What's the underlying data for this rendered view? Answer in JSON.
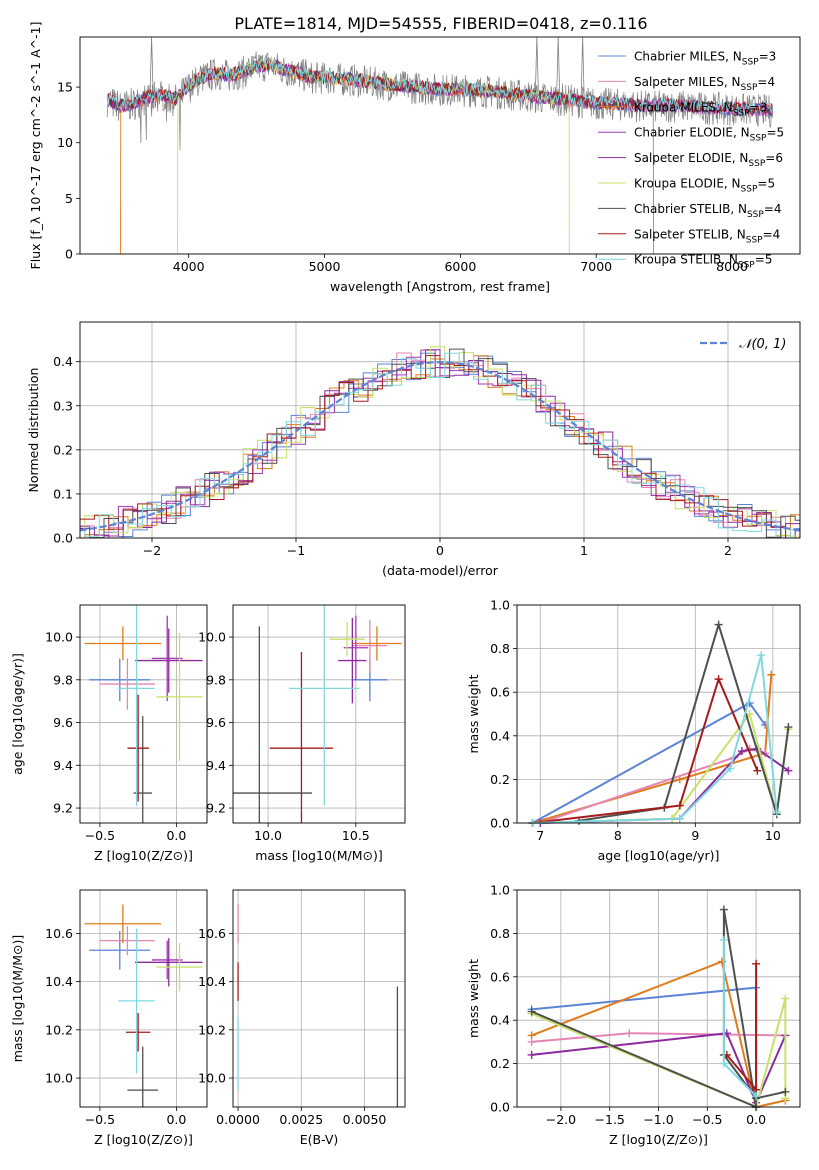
{
  "title": "PLATE=1814, MJD=54555, FIBERID=0418, z=0.116",
  "colors": {
    "chabrier_miles": "#5b84d6",
    "salpeter_miles": "#e485b3",
    "kroupa_miles": "#e07b1a",
    "chabrier_elodie": "#a437b5",
    "salpeter_elodie": "#8e2a9f",
    "kroupa_elodie": "#c6e26a",
    "chabrier_stelib": "#4f4f4f",
    "salpeter_stelib": "#a61b1b",
    "kroupa_stelib": "#7fd8e0",
    "data": "#808080",
    "gauss": "#5b84d6"
  },
  "chart_data": [
    {
      "id": "spectrum",
      "type": "line",
      "title": "PLATE=1814, MJD=54555, FIBERID=0418, z=0.116",
      "xlabel": "wavelength [Angstrom, rest frame]",
      "ylabel": "Flux [f_λ 10^-17 erg cm^-2 s^-1 A^-1]",
      "xlim": [
        3200,
        8500
      ],
      "ylim": [
        0,
        19.5
      ],
      "xticks": [
        "4000",
        "5000",
        "6000",
        "7000",
        "8000"
      ],
      "yticks": [
        "0",
        "5",
        "10",
        "15"
      ],
      "legend_position": "top-right",
      "legend": [
        {
          "label": "Chabrier MILES, N",
          "sub": "SSP",
          "eq": "=3",
          "color_key": "chabrier_miles"
        },
        {
          "label": "Salpeter MILES, N",
          "sub": "SSP",
          "eq": "=4",
          "color_key": "salpeter_miles"
        },
        {
          "label": "Kroupa MILES, N",
          "sub": "SSP",
          "eq": "=3",
          "color_key": "kroupa_miles"
        },
        {
          "label": "Chabrier ELODIE, N",
          "sub": "SSP",
          "eq": "=5",
          "color_key": "chabrier_elodie"
        },
        {
          "label": "Salpeter ELODIE, N",
          "sub": "SSP",
          "eq": "=6",
          "color_key": "salpeter_elodie"
        },
        {
          "label": "Kroupa ELODIE, N",
          "sub": "SSP",
          "eq": "=5",
          "color_key": "kroupa_elodie"
        },
        {
          "label": "Chabrier STELIB, N",
          "sub": "SSP",
          "eq": "=4",
          "color_key": "chabrier_stelib"
        },
        {
          "label": "Salpeter STELIB, N",
          "sub": "SSP",
          "eq": "=4",
          "color_key": "salpeter_stelib"
        },
        {
          "label": "Kroupa STELIB, N",
          "sub": "SSP",
          "eq": "=5",
          "color_key": "kroupa_stelib"
        }
      ],
      "continuum": {
        "x": [
          3400,
          3500,
          3600,
          3700,
          3800,
          3900,
          4000,
          4100,
          4200,
          4300,
          4400,
          4500,
          4600,
          4700,
          4800,
          4900,
          5000,
          5200,
          5400,
          5600,
          5800,
          6000,
          6200,
          6400,
          6600,
          6800,
          7000,
          7200,
          7400,
          7600,
          7800,
          8000,
          8200,
          8300
        ],
        "y": [
          13.8,
          13.2,
          13.5,
          14.0,
          14.3,
          13.8,
          15.0,
          15.8,
          16.2,
          16.0,
          16.3,
          16.8,
          17.0,
          16.5,
          16.2,
          15.8,
          15.8,
          15.6,
          15.3,
          15.0,
          14.8,
          14.7,
          14.6,
          14.3,
          14.0,
          13.8,
          13.5,
          13.4,
          13.2,
          13.3,
          13.1,
          13.0,
          12.9,
          12.8
        ]
      },
      "model_dropouts": [
        {
          "color_key": "kroupa_miles",
          "x": [
            3500,
            7420
          ],
          "note": ""
        },
        {
          "color_key": "kroupa_elodie",
          "x": [
            3920,
            6800
          ],
          "note": ""
        }
      ],
      "emission_lines": [
        {
          "x": 3727,
          "y": 19.5
        },
        {
          "x": 4861,
          "y": 17.5
        },
        {
          "x": 6563,
          "y": 19.5
        },
        {
          "x": 6720,
          "y": 19.5
        },
        {
          "x": 6900,
          "y": 19.5
        }
      ]
    },
    {
      "id": "residuals",
      "type": "line",
      "xlabel": "(data-model)/error",
      "ylabel": "Normed distribution",
      "xlim": [
        -2.5,
        2.5
      ],
      "ylim": [
        0,
        0.49
      ],
      "xticks": [
        -2,
        -1,
        0,
        1,
        2
      ],
      "xticklabels": [
        "−2",
        "−1",
        "0",
        "1",
        "2"
      ],
      "yticks": [
        0.0,
        0.1,
        0.2,
        0.3,
        0.4
      ],
      "yticklabels": [
        "0.0",
        "0.1",
        "0.2",
        "0.3",
        "0.4"
      ],
      "legend": "𝒩(0, 1)",
      "legend_position": "top-right",
      "grid": true
    },
    {
      "id": "age_vs_Z",
      "type": "scatter",
      "xlabel": "Z [log10(Z/Z⊙)]",
      "ylabel": "age  [log10(age/yr)]",
      "xlim": [
        -0.63,
        0.2
      ],
      "ylim": [
        9.13,
        10.15
      ],
      "xticks": [
        -0.5,
        0.0
      ],
      "xticklabels": [
        "−0.5",
        "0.0"
      ],
      "yticks": [
        9.2,
        9.4,
        9.6,
        9.8,
        10.0
      ],
      "yticklabels": [
        "9.2",
        "9.4",
        "9.6",
        "9.8",
        "10.0"
      ],
      "grid": true,
      "points": [
        {
          "color_key": "chabrier_miles",
          "x": -0.37,
          "xerr": 0.2,
          "y": 9.8,
          "yerr": 0.1
        },
        {
          "color_key": "salpeter_miles",
          "x": -0.32,
          "xerr": 0.18,
          "y": 9.78,
          "yerr": 0.12
        },
        {
          "color_key": "kroupa_miles",
          "x": -0.35,
          "xerr": 0.25,
          "y": 9.97,
          "yerr": 0.08
        },
        {
          "color_key": "chabrier_elodie",
          "x": -0.06,
          "xerr": 0.1,
          "y": 9.9,
          "yerr": 0.2
        },
        {
          "color_key": "salpeter_elodie",
          "x": -0.05,
          "xerr": 0.22,
          "y": 9.89,
          "yerr": 0.15
        },
        {
          "color_key": "kroupa_elodie",
          "x": 0.02,
          "xerr": 0.15,
          "y": 9.72,
          "yerr": 0.3
        },
        {
          "color_key": "chabrier_stelib",
          "x": -0.22,
          "xerr": 0.06,
          "y": 9.27,
          "yerr": 0.36
        },
        {
          "color_key": "salpeter_stelib",
          "x": -0.25,
          "xerr": 0.07,
          "y": 9.48,
          "yerr": 0.25
        },
        {
          "color_key": "kroupa_stelib",
          "x": -0.26,
          "xerr": 0.12,
          "y": 9.76,
          "yerr": 0.55
        }
      ]
    },
    {
      "id": "age_vs_mass",
      "type": "scatter",
      "xlabel": "mass [log10(M/M⊙)]",
      "ylabel": "",
      "xlim": [
        9.8,
        10.78
      ],
      "ylim": [
        9.13,
        10.15
      ],
      "xticks": [
        10.0,
        10.5
      ],
      "xticklabels": [
        "10.0",
        "10.5"
      ],
      "yticks": [
        9.2,
        9.4,
        9.6,
        9.8,
        10.0
      ],
      "yticklabels": [
        "9.2",
        "9.4",
        "9.6",
        "9.8",
        "10.0"
      ],
      "grid": true,
      "points": [
        {
          "color_key": "chabrier_miles",
          "x": 10.58,
          "xerr": 0.1,
          "y": 9.8,
          "yerr": 0.1
        },
        {
          "color_key": "salpeter_miles",
          "x": 10.58,
          "xerr": 0.1,
          "y": 9.96,
          "yerr": 0.12
        },
        {
          "color_key": "kroupa_miles",
          "x": 10.62,
          "xerr": 0.14,
          "y": 9.97,
          "yerr": 0.08
        },
        {
          "color_key": "chabrier_elodie",
          "x": 10.5,
          "xerr": 0.07,
          "y": 9.95,
          "yerr": 0.15
        },
        {
          "color_key": "salpeter_elodie",
          "x": 10.48,
          "xerr": 0.08,
          "y": 9.89,
          "yerr": 0.2
        },
        {
          "color_key": "kroupa_elodie",
          "x": 10.45,
          "xerr": 0.1,
          "y": 9.99,
          "yerr": 0.08
        },
        {
          "color_key": "chabrier_stelib",
          "x": 9.95,
          "xerr": 0.3,
          "y": 9.27,
          "yerr": 0.78
        },
        {
          "color_key": "salpeter_stelib",
          "x": 10.19,
          "xerr": 0.18,
          "y": 9.48,
          "yerr": 0.45
        },
        {
          "color_key": "kroupa_stelib",
          "x": 10.32,
          "xerr": 0.2,
          "y": 9.76,
          "yerr": 0.55
        }
      ]
    },
    {
      "id": "mass_weight_vs_age",
      "type": "line",
      "xlabel": "age  [log10(age/yr)]",
      "ylabel": "mass weight",
      "xlim": [
        6.7,
        10.35
      ],
      "ylim": [
        0.0,
        1.0
      ],
      "xticks": [
        7,
        8,
        9,
        10
      ],
      "xticklabels": [
        "7",
        "8",
        "9",
        "10"
      ],
      "yticks": [
        0.0,
        0.2,
        0.4,
        0.6,
        0.8,
        1.0
      ],
      "yticklabels": [
        "0.0",
        "0.2",
        "0.4",
        "0.6",
        "0.8",
        "1.0"
      ],
      "grid": true,
      "series": [
        {
          "color_key": "chabrier_miles",
          "x": [
            6.9,
            9.7,
            9.9
          ],
          "y": [
            0.0,
            0.55,
            0.45
          ]
        },
        {
          "color_key": "kroupa_miles",
          "x": [
            6.9,
            8.8,
            9.9,
            9.98
          ],
          "y": [
            0.0,
            0.2,
            0.32,
            0.68
          ]
        },
        {
          "color_key": "salpeter_miles",
          "x": [
            7.0,
            9.5,
            9.7,
            9.9
          ],
          "y": [
            0.0,
            0.3,
            0.34,
            0.32
          ]
        },
        {
          "color_key": "salpeter_elodie",
          "x": [
            7.0,
            8.8,
            9.6,
            9.8,
            10.2
          ],
          "y": [
            0.0,
            0.02,
            0.33,
            0.34,
            0.24
          ]
        },
        {
          "color_key": "kroupa_elodie",
          "x": [
            6.9,
            8.7,
            9.7,
            10.05,
            10.2
          ],
          "y": [
            0.0,
            0.02,
            0.5,
            0.04,
            0.43
          ]
        },
        {
          "color_key": "chabrier_stelib",
          "x": [
            7.5,
            8.6,
            9.3,
            10.05,
            10.2
          ],
          "y": [
            0.01,
            0.07,
            0.91,
            0.04,
            0.44
          ]
        },
        {
          "color_key": "salpeter_stelib",
          "x": [
            6.9,
            8.8,
            9.3,
            9.8
          ],
          "y": [
            0.0,
            0.08,
            0.66,
            0.24
          ]
        },
        {
          "color_key": "kroupa_stelib",
          "x": [
            6.9,
            8.8,
            9.45,
            9.85,
            10.05
          ],
          "y": [
            0.0,
            0.02,
            0.25,
            0.77,
            0.05
          ]
        }
      ]
    },
    {
      "id": "mass_vs_Z",
      "type": "scatter",
      "xlabel": "Z [log10(Z/Z⊙)]",
      "ylabel": "mass [log10(M/M⊙)]",
      "xlim": [
        -0.63,
        0.2
      ],
      "ylim": [
        9.88,
        10.78
      ],
      "xticks": [
        -0.5,
        0.0
      ],
      "xticklabels": [
        "−0.5",
        "0.0"
      ],
      "yticks": [
        10.0,
        10.2,
        10.4,
        10.6
      ],
      "yticklabels": [
        "10.0",
        "10.2",
        "10.4",
        "10.6"
      ],
      "grid": true,
      "points": [
        {
          "color_key": "chabrier_miles",
          "x": -0.37,
          "xerr": 0.2,
          "y": 10.53,
          "yerr": 0.08
        },
        {
          "color_key": "salpeter_miles",
          "x": -0.32,
          "xerr": 0.18,
          "y": 10.57,
          "yerr": 0.06
        },
        {
          "color_key": "kroupa_miles",
          "x": -0.35,
          "xerr": 0.25,
          "y": 10.64,
          "yerr": 0.08
        },
        {
          "color_key": "chabrier_elodie",
          "x": -0.06,
          "xerr": 0.1,
          "y": 10.49,
          "yerr": 0.08
        },
        {
          "color_key": "salpeter_elodie",
          "x": -0.05,
          "xerr": 0.22,
          "y": 10.48,
          "yerr": 0.1
        },
        {
          "color_key": "kroupa_elodie",
          "x": 0.02,
          "xerr": 0.15,
          "y": 10.46,
          "yerr": 0.1
        },
        {
          "color_key": "chabrier_stelib",
          "x": -0.22,
          "xerr": 0.1,
          "y": 9.95,
          "yerr": 0.18
        },
        {
          "color_key": "salpeter_stelib",
          "x": -0.25,
          "xerr": 0.08,
          "y": 10.19,
          "yerr": 0.08
        },
        {
          "color_key": "kroupa_stelib",
          "x": -0.26,
          "xerr": 0.12,
          "y": 10.32,
          "yerr": 0.3
        }
      ]
    },
    {
      "id": "mass_vs_ebv",
      "type": "scatter",
      "xlabel": "E(B-V)",
      "ylabel": "",
      "xlim": [
        -0.0002,
        0.0066
      ],
      "ylim": [
        9.88,
        10.78
      ],
      "xticks": [
        0.0,
        0.0025,
        0.005
      ],
      "xticklabels": [
        "0.0000",
        "0.0025",
        "0.0050"
      ],
      "yticks": [
        10.0,
        10.2,
        10.4,
        10.6
      ],
      "yticklabels": [
        "10.0",
        "10.2",
        "10.4",
        "10.6"
      ],
      "grid": true,
      "points": [
        {
          "color_key": "kroupa_stelib",
          "x": 0.0,
          "xerr": 0.0,
          "y": 10.1,
          "yerr": 0.15
        },
        {
          "color_key": "salpeter_stelib",
          "x": 0.0,
          "xerr": 0.0,
          "y": 10.4,
          "yerr": 0.08
        },
        {
          "color_key": "salpeter_miles",
          "x": 0.0,
          "xerr": 0.0,
          "y": 10.64,
          "yerr": 0.08
        },
        {
          "color_key": "chabrier_stelib",
          "x": 0.0063,
          "xerr": 0.0,
          "y": 10.1,
          "yerr": 0.28
        }
      ]
    },
    {
      "id": "mass_weight_vs_Z",
      "type": "line",
      "xlabel": "Z [log10(Z/Z⊙)]",
      "ylabel": "mass weight",
      "xlim": [
        -2.45,
        0.45
      ],
      "ylim": [
        0.0,
        1.0
      ],
      "xticks": [
        -2.0,
        -1.5,
        -1.0,
        -0.5,
        0.0
      ],
      "xticklabels": [
        "−2.0",
        "−1.5",
        "−1.0",
        "−0.5",
        "0.0"
      ],
      "yticks": [
        0.0,
        0.2,
        0.4,
        0.6,
        0.8,
        1.0
      ],
      "yticklabels": [
        "0.0",
        "0.2",
        "0.4",
        "0.6",
        "0.8",
        "1.0"
      ],
      "grid": true,
      "series": [
        {
          "color_key": "chabrier_miles",
          "x": [
            -2.3,
            0.0,
            0.0
          ],
          "y": [
            0.45,
            0.55,
            0.0
          ]
        },
        {
          "color_key": "kroupa_miles",
          "x": [
            -2.3,
            -0.35,
            0.0,
            0.3
          ],
          "y": [
            0.33,
            0.67,
            0.0,
            0.03
          ]
        },
        {
          "color_key": "salpeter_miles",
          "x": [
            -2.3,
            -1.3,
            0.3
          ],
          "y": [
            0.3,
            0.34,
            0.33
          ]
        },
        {
          "color_key": "salpeter_elodie",
          "x": [
            -2.3,
            -0.3,
            0.0,
            0.3
          ],
          "y": [
            0.24,
            0.34,
            0.02,
            0.33
          ]
        },
        {
          "color_key": "kroupa_elodie",
          "x": [
            -2.3,
            0.0,
            0.3,
            0.3
          ],
          "y": [
            0.43,
            0.0,
            0.5,
            0.04
          ]
        },
        {
          "color_key": "chabrier_stelib",
          "x": [
            -2.3,
            0.0,
            -0.33,
            -0.33,
            0.0,
            0.3
          ],
          "y": [
            0.44,
            0.0,
            0.91,
            0.24,
            0.04,
            0.07
          ]
        },
        {
          "color_key": "salpeter_stelib",
          "x": [
            -0.3,
            0.0,
            0.0
          ],
          "y": [
            0.24,
            0.08,
            0.66
          ]
        },
        {
          "color_key": "kroupa_stelib",
          "x": [
            -0.33,
            -0.33,
            0.0
          ],
          "y": [
            0.77,
            0.2,
            0.05
          ]
        }
      ]
    }
  ]
}
